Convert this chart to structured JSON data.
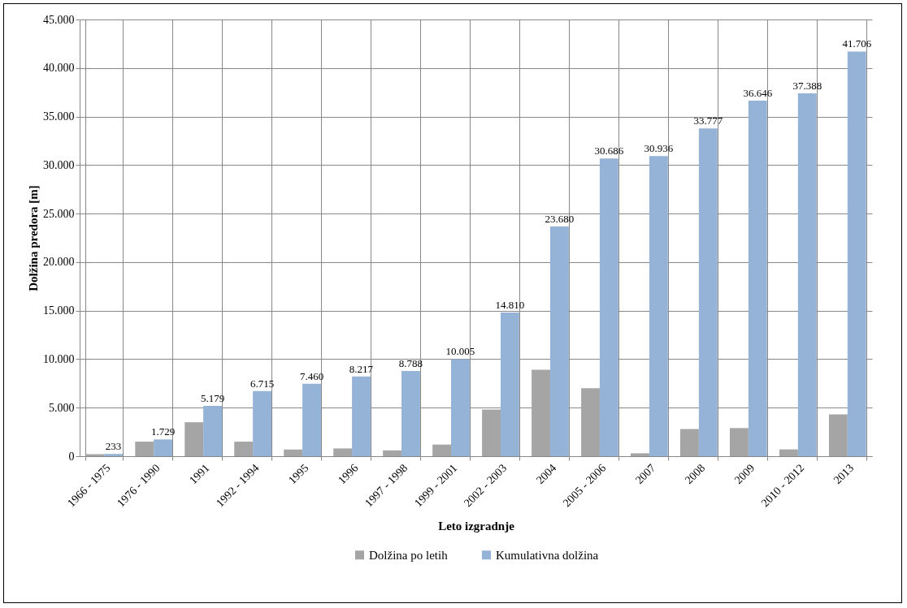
{
  "chart_data": {
    "type": "bar",
    "xlabel": "Leto izgradnje",
    "ylabel": "Dolžina predora [m]",
    "categories": [
      "1966 - 1975",
      "1976 - 1990",
      "1991",
      "1992 - 1994",
      "1995",
      "1996",
      "1997 - 1998",
      "1999 - 2001",
      "2002 - 2003",
      "2004",
      "2005 - 2006",
      "2007",
      "2008",
      "2009",
      "2010 - 2012",
      "2013"
    ],
    "series": [
      {
        "name": "Dolžina po letih",
        "color": "#a5a5a5",
        "values": [
          200,
          1500,
          3500,
          1500,
          700,
          800,
          600,
          1200,
          4800,
          8900,
          7000,
          300,
          2800,
          2900,
          700,
          4300
        ]
      },
      {
        "name": "Kumulativna dolžina",
        "color": "#95b3d7",
        "values": [
          233,
          1729,
          5179,
          6715,
          7460,
          8217,
          8788,
          10005,
          14810,
          23680,
          30686,
          30936,
          33777,
          36646,
          37388,
          41706
        ],
        "value_labels": [
          "233",
          "1.729",
          "5.179",
          "6.715",
          "7.460",
          "8.217",
          "8.788",
          "10.005",
          "14.810",
          "23.680",
          "30.686",
          "30.936",
          "33.777",
          "36.646",
          "37.388",
          "41.706"
        ]
      }
    ],
    "ylim": [
      0,
      45000
    ],
    "yticks": [
      {
        "value": 0,
        "label": "0"
      },
      {
        "value": 5000,
        "label": "5.000"
      },
      {
        "value": 10000,
        "label": "10.000"
      },
      {
        "value": 15000,
        "label": "15.000"
      },
      {
        "value": 20000,
        "label": "20.000"
      },
      {
        "value": 25000,
        "label": "25.000"
      },
      {
        "value": 30000,
        "label": "30.000"
      },
      {
        "value": 35000,
        "label": "35.000"
      },
      {
        "value": 40000,
        "label": "40.000"
      },
      {
        "value": 45000,
        "label": "45.000"
      }
    ],
    "grid": true,
    "legend": "bottom"
  }
}
